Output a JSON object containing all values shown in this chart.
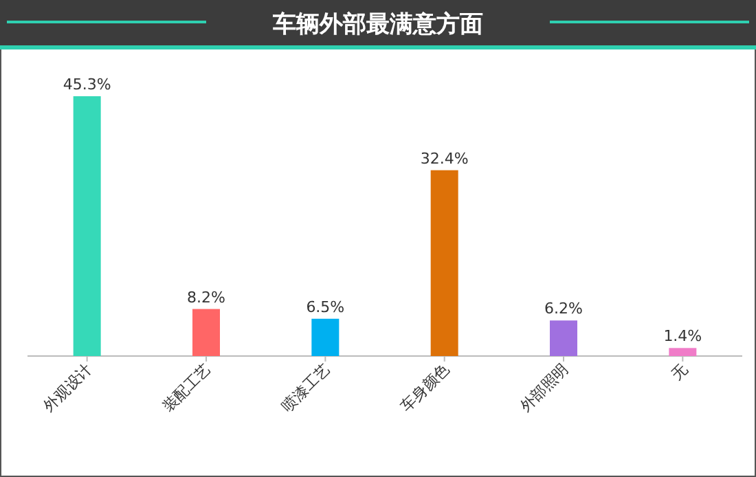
{
  "chart_data": {
    "type": "bar",
    "title": "车辆外部最满意方面",
    "categories": [
      "外观设计",
      "装配工艺",
      "喷漆工艺",
      "车身颜色",
      "外部照明",
      "无"
    ],
    "values": [
      45.3,
      8.2,
      6.5,
      32.4,
      6.2,
      1.4
    ],
    "value_labels": [
      "45.3%",
      "8.2%",
      "6.5%",
      "32.4%",
      "6.2%",
      "1.4%"
    ],
    "colors": [
      "#36d9b8",
      "#ff6666",
      "#00b0f0",
      "#dd7108",
      "#a070e0",
      "#f07cc8"
    ],
    "tick_labels": "x"
  }
}
